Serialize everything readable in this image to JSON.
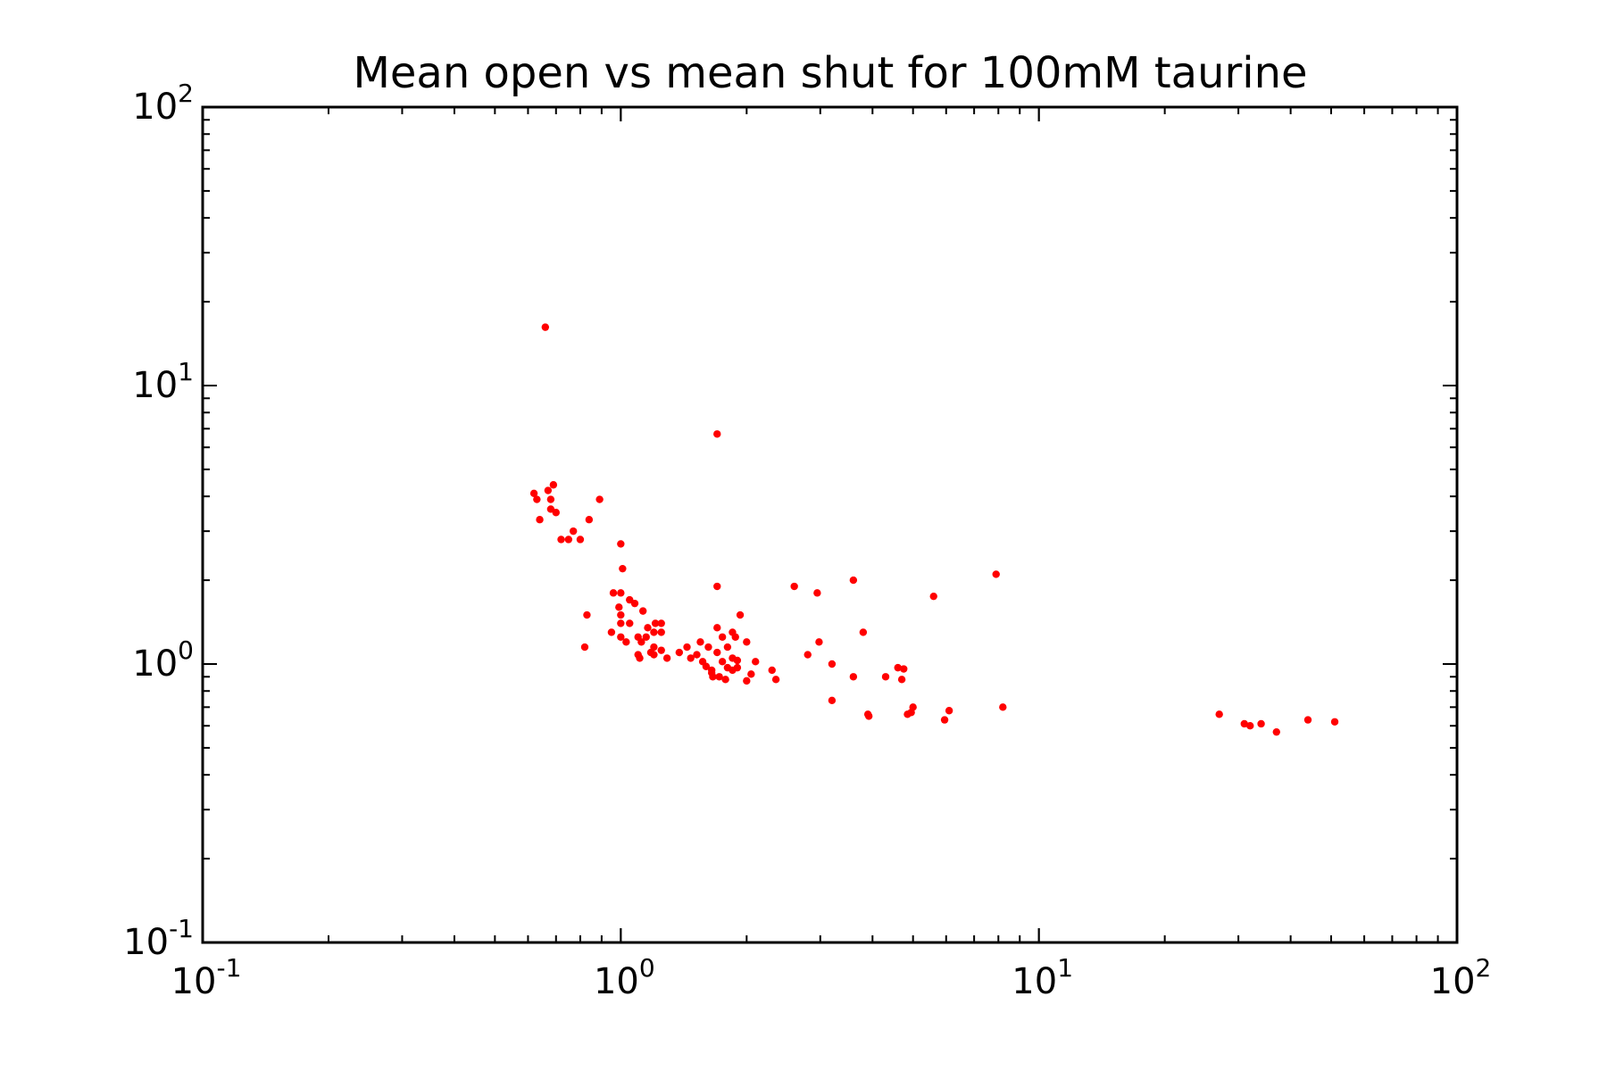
{
  "chart_data": {
    "type": "scatter",
    "title": "Mean open vs mean shut for 100mM taurine",
    "xlabel": "",
    "ylabel": "",
    "xscale": "log",
    "yscale": "log",
    "xlim": [
      0.1,
      100
    ],
    "ylim": [
      0.1,
      100
    ],
    "grid": false,
    "legend": "none",
    "x_ticks": [
      {
        "base": "10",
        "exp": "-1"
      },
      {
        "base": "10",
        "exp": "0"
      },
      {
        "base": "10",
        "exp": "1"
      },
      {
        "base": "10",
        "exp": "2"
      }
    ],
    "y_ticks": [
      {
        "base": "10",
        "exp": "-1"
      },
      {
        "base": "10",
        "exp": "0"
      },
      {
        "base": "10",
        "exp": "1"
      },
      {
        "base": "10",
        "exp": "2"
      }
    ],
    "colors": {
      "marker": "#ff0000",
      "axes": "#000000",
      "background": "#ffffff"
    },
    "series": [
      {
        "points": [
          [
            0.66,
            16.2
          ],
          [
            1.7,
            6.7
          ],
          [
            0.62,
            4.1
          ],
          [
            0.67,
            4.2
          ],
          [
            0.69,
            4.4
          ],
          [
            0.63,
            3.9
          ],
          [
            0.68,
            3.9
          ],
          [
            0.89,
            3.9
          ],
          [
            0.68,
            3.6
          ],
          [
            0.7,
            3.5
          ],
          [
            0.64,
            3.3
          ],
          [
            0.84,
            3.3
          ],
          [
            0.77,
            3.0
          ],
          [
            0.72,
            2.8
          ],
          [
            0.75,
            2.8
          ],
          [
            0.8,
            2.8
          ],
          [
            1.0,
            2.7
          ],
          [
            1.01,
            2.2
          ],
          [
            7.9,
            2.1
          ],
          [
            3.6,
            2.0
          ],
          [
            2.6,
            1.9
          ],
          [
            1.7,
            1.9
          ],
          [
            0.96,
            1.8
          ],
          [
            1.0,
            1.8
          ],
          [
            2.95,
            1.8
          ],
          [
            5.6,
            1.75
          ],
          [
            1.05,
            1.7
          ],
          [
            1.08,
            1.65
          ],
          [
            0.99,
            1.6
          ],
          [
            1.13,
            1.55
          ],
          [
            0.83,
            1.5
          ],
          [
            1.0,
            1.5
          ],
          [
            1.93,
            1.5
          ],
          [
            1.0,
            1.4
          ],
          [
            1.05,
            1.4
          ],
          [
            1.21,
            1.4
          ],
          [
            1.25,
            1.4
          ],
          [
            1.16,
            1.35
          ],
          [
            1.7,
            1.35
          ],
          [
            1.2,
            1.3
          ],
          [
            1.25,
            1.3
          ],
          [
            1.85,
            1.3
          ],
          [
            0.95,
            1.3
          ],
          [
            1.0,
            1.25
          ],
          [
            3.8,
            1.3
          ],
          [
            1.1,
            1.25
          ],
          [
            1.15,
            1.25
          ],
          [
            1.88,
            1.25
          ],
          [
            1.75,
            1.25
          ],
          [
            2.0,
            1.2
          ],
          [
            1.03,
            1.2
          ],
          [
            1.12,
            1.2
          ],
          [
            1.55,
            1.2
          ],
          [
            2.98,
            1.2
          ],
          [
            0.82,
            1.15
          ],
          [
            1.2,
            1.15
          ],
          [
            1.44,
            1.15
          ],
          [
            1.62,
            1.15
          ],
          [
            1.8,
            1.15
          ],
          [
            1.25,
            1.12
          ],
          [
            1.38,
            1.1
          ],
          [
            1.18,
            1.1
          ],
          [
            1.7,
            1.1
          ],
          [
            1.1,
            1.08
          ],
          [
            1.52,
            1.08
          ],
          [
            1.2,
            1.08
          ],
          [
            2.8,
            1.08
          ],
          [
            1.85,
            1.05
          ],
          [
            1.47,
            1.05
          ],
          [
            1.11,
            1.05
          ],
          [
            1.29,
            1.05
          ],
          [
            1.57,
            1.02
          ],
          [
            1.75,
            1.02
          ],
          [
            1.9,
            1.03
          ],
          [
            2.1,
            1.02
          ],
          [
            3.2,
            1.0
          ],
          [
            1.6,
            0.98
          ],
          [
            1.65,
            0.95
          ],
          [
            1.8,
            0.97
          ],
          [
            1.9,
            0.97
          ],
          [
            2.3,
            0.95
          ],
          [
            4.6,
            0.97
          ],
          [
            4.75,
            0.96
          ],
          [
            1.65,
            0.93
          ],
          [
            1.85,
            0.95
          ],
          [
            2.05,
            0.92
          ],
          [
            1.66,
            0.9
          ],
          [
            1.72,
            0.9
          ],
          [
            3.6,
            0.9
          ],
          [
            4.3,
            0.9
          ],
          [
            4.7,
            0.88
          ],
          [
            1.78,
            0.88
          ],
          [
            2.0,
            0.87
          ],
          [
            2.35,
            0.88
          ],
          [
            3.2,
            0.74
          ],
          [
            8.2,
            0.7
          ],
          [
            5.0,
            0.7
          ],
          [
            3.9,
            0.66
          ],
          [
            6.1,
            0.68
          ],
          [
            4.95,
            0.67
          ],
          [
            3.92,
            0.65
          ],
          [
            4.85,
            0.66
          ],
          [
            5.95,
            0.63
          ],
          [
            27,
            0.66
          ],
          [
            31,
            0.61
          ],
          [
            32,
            0.6
          ],
          [
            34,
            0.61
          ],
          [
            37,
            0.57
          ],
          [
            44,
            0.63
          ],
          [
            51,
            0.62
          ]
        ]
      }
    ]
  }
}
